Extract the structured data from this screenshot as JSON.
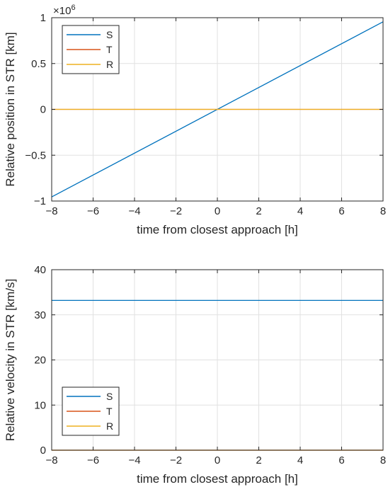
{
  "chart_data": [
    {
      "type": "line",
      "xlabel": "time from closest approach [h]",
      "ylabel": "Relative position in STR [km]",
      "exponent_label": "×10",
      "exponent_power": "6",
      "xlim": [
        -8,
        8
      ],
      "ylim": [
        -1,
        1
      ],
      "xticks": [
        "-8",
        "-6",
        "-4",
        "-2",
        "0",
        "2",
        "4",
        "6",
        "8"
      ],
      "yticks": [
        "-1",
        "-0.5",
        "0",
        "0.5",
        "1"
      ],
      "grid": true,
      "legend": "top-left",
      "series": [
        {
          "name": "S",
          "color": "#0072BD",
          "x": [
            -8,
            8
          ],
          "y": [
            -0.955,
            0.955
          ]
        },
        {
          "name": "T",
          "color": "#D95319",
          "x": [
            -8,
            8
          ],
          "y": [
            0,
            0
          ]
        },
        {
          "name": "R",
          "color": "#EDB120",
          "x": [
            -8,
            8
          ],
          "y": [
            0,
            0
          ]
        }
      ]
    },
    {
      "type": "line",
      "xlabel": "time from closest approach [h]",
      "ylabel": "Relative velocity in STR [km/s]",
      "xlim": [
        -8,
        8
      ],
      "ylim": [
        0,
        40
      ],
      "xticks": [
        "-8",
        "-6",
        "-4",
        "-2",
        "0",
        "2",
        "4",
        "6",
        "8"
      ],
      "yticks": [
        "0",
        "10",
        "20",
        "30",
        "40"
      ],
      "grid": true,
      "legend": "bottom-left",
      "series": [
        {
          "name": "S",
          "color": "#0072BD",
          "x": [
            -8,
            8
          ],
          "y": [
            33.2,
            33.2
          ]
        },
        {
          "name": "T",
          "color": "#D95319",
          "x": [
            -8,
            8
          ],
          "y": [
            0,
            0
          ]
        },
        {
          "name": "R",
          "color": "#EDB120",
          "x": [
            -8,
            8
          ],
          "y": [
            0,
            0
          ]
        }
      ]
    }
  ]
}
